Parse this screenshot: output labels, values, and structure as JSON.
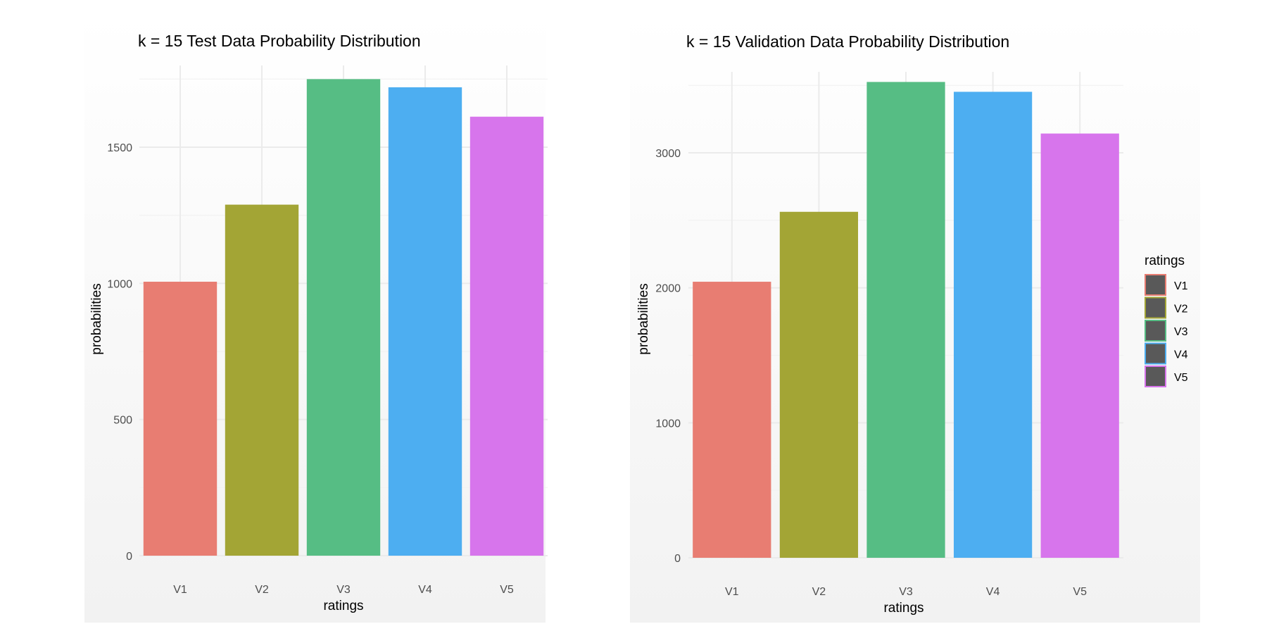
{
  "chart_data": [
    {
      "type": "bar",
      "title": "k =  15 Test Data Probability Distribution",
      "xlabel": "ratings",
      "ylabel": "probabilities",
      "categories": [
        "V1",
        "V2",
        "V3",
        "V4",
        "V5"
      ],
      "values": [
        1006,
        1289,
        1750,
        1720,
        1612
      ],
      "ylim": [
        0,
        1800
      ],
      "yticks": [
        0,
        500,
        1000,
        1500
      ],
      "ytick_labels": [
        "0",
        "500",
        "1000",
        "1500"
      ],
      "grid": true,
      "colors": [
        "#E87D72",
        "#A3A535",
        "#56BD84",
        "#4DAEF1",
        "#D775EC"
      ]
    },
    {
      "type": "bar",
      "title": "k =  15 Validation Data Probability Distribution",
      "xlabel": "ratings",
      "ylabel": "probabilities",
      "categories": [
        "V1",
        "V2",
        "V3",
        "V4",
        "V5"
      ],
      "values": [
        2045,
        2563,
        3525,
        3452,
        3143
      ],
      "ylim": [
        0,
        3600
      ],
      "yticks": [
        0,
        1000,
        2000,
        3000
      ],
      "ytick_labels": [
        "0",
        "1000",
        "2000",
        "3000"
      ],
      "grid": true,
      "colors": [
        "#E87D72",
        "#A3A535",
        "#56BD84",
        "#4DAEF1",
        "#D775EC"
      ],
      "legend": {
        "title": "ratings",
        "placement": "right",
        "entries": [
          "V1",
          "V2",
          "V3",
          "V4",
          "V5"
        ],
        "key_fill": "#595959"
      }
    }
  ]
}
